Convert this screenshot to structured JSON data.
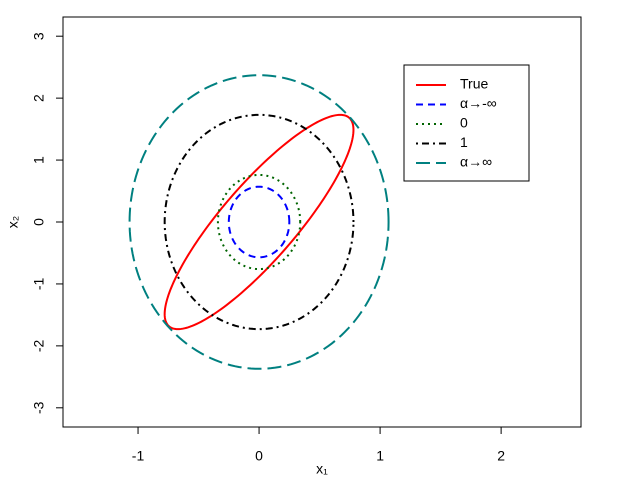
{
  "chart_data": {
    "type": "ellipse",
    "x_label": "x₁",
    "y_label": "x₂",
    "xlim": [
      -1.62,
      2.66
    ],
    "ylim": [
      -3.31,
      3.31
    ],
    "xticks": [
      -1,
      0,
      1,
      2
    ],
    "yticks": [
      -3,
      -2,
      -1,
      0,
      1,
      2,
      3
    ],
    "legend": "top-right",
    "series": [
      {
        "name": "True",
        "color": "#ff0000",
        "dash": "solid",
        "sx": 0.78,
        "sy": 1.73,
        "rho": 0.86
      },
      {
        "name": "α→-∞",
        "color": "#0000ff",
        "dash": "dashed",
        "sx": 0.25,
        "sy": 0.57,
        "rho": 0
      },
      {
        "name": "0",
        "color": "#006400",
        "dash": "dotted",
        "sx": 0.34,
        "sy": 0.76,
        "rho": 0
      },
      {
        "name": "1",
        "color": "#000000",
        "dash": "dotdash",
        "sx": 0.78,
        "sy": 1.73,
        "rho": 0
      },
      {
        "name": "α→∞",
        "color": "#008080",
        "dash": "longdash",
        "sx": 1.07,
        "sy": 2.37,
        "rho": 0
      }
    ]
  }
}
